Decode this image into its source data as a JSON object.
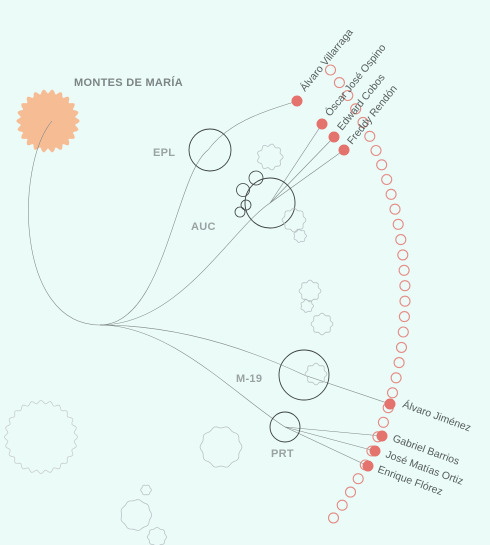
{
  "title": "MONTES DE MARÍA",
  "groups": [
    {
      "id": "epl",
      "label": "EPL"
    },
    {
      "id": "auc",
      "label": "AUC"
    },
    {
      "id": "m19",
      "label": "M-19"
    },
    {
      "id": "prt",
      "label": "PRT"
    }
  ],
  "people": [
    {
      "name": "Álvaro Villarraga",
      "group": "epl"
    },
    {
      "name": "Óscar José Ospino",
      "group": "auc"
    },
    {
      "name": "Edward Cobos",
      "group": "auc"
    },
    {
      "name": "Freddy Rendón",
      "group": "auc"
    },
    {
      "name": "Álvaro Jiménez",
      "group": "m19"
    },
    {
      "name": "Gabriel Barrios",
      "group": "prt"
    },
    {
      "name": "José Matías Ortiz",
      "group": "prt"
    },
    {
      "name": "Enrique Flórez",
      "group": "prt"
    }
  ],
  "colors": {
    "background": "#ebfbf8",
    "root_fill": "#f6bd95",
    "highlight": "#e4736d",
    "ring": "#e48b86",
    "line": "#7d8686"
  }
}
